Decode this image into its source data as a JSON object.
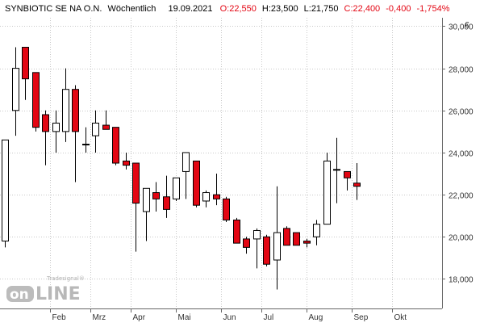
{
  "chart_data": {
    "type": "candlestick",
    "header": {
      "instrument": "SYNBIOTIC SE  NA O.N.",
      "period": "Wöchentlich",
      "date": "19.09.2021",
      "open": "O:22,550",
      "high": "H:23,500",
      "low": "L:21,750",
      "close": "C:22,400",
      "change": "-0,400",
      "change_pct": "-1,754%"
    },
    "currency_label": "€",
    "y_ticks": [
      18000,
      20000,
      22000,
      24000,
      26000,
      28000,
      30000
    ],
    "y_tick_labels": [
      "18,000",
      "20,000",
      "22,000",
      "24,000",
      "26,000",
      "28,000",
      "30,000"
    ],
    "ylim": [
      16600,
      30400
    ],
    "x_month_labels": [
      "Feb",
      "Mrz",
      "Apr",
      "Mai",
      "Jun",
      "Jul",
      "Aug",
      "Sep",
      "Okt"
    ],
    "x_month_positions": [
      5.0,
      9.0,
      13.0,
      17.5,
      22.0,
      26.0,
      30.5,
      35.0,
      39.0
    ],
    "x_total_slots": 44,
    "grid": true,
    "colors": {
      "up": "#ffffff",
      "down": "#e30613",
      "outline": "#000000",
      "header_red": "#e30613",
      "grid": "#c8c8c8"
    },
    "candles": [
      {
        "o": 19800,
        "h": 24600,
        "l": 19500,
        "c": 24600
      },
      {
        "o": 26000,
        "h": 29000,
        "l": 24800,
        "c": 28000
      },
      {
        "o": 29000,
        "h": 29000,
        "l": 26500,
        "c": 27500
      },
      {
        "o": 27800,
        "h": 27800,
        "l": 25000,
        "c": 25200
      },
      {
        "o": 25800,
        "h": 26000,
        "l": 23400,
        "c": 25000
      },
      {
        "o": 25000,
        "h": 26000,
        "l": 24000,
        "c": 25400
      },
      {
        "o": 25000,
        "h": 28000,
        "l": 24500,
        "c": 27000
      },
      {
        "o": 27000,
        "h": 27200,
        "l": 22600,
        "c": 25000
      },
      {
        "o": 24400,
        "h": 25200,
        "l": 24000,
        "c": 24400
      },
      {
        "o": 24800,
        "h": 26000,
        "l": 24000,
        "c": 25400
      },
      {
        "o": 25300,
        "h": 26000,
        "l": 25100,
        "c": 25100
      },
      {
        "o": 25200,
        "h": 25200,
        "l": 23400,
        "c": 23500
      },
      {
        "o": 23600,
        "h": 24000,
        "l": 23200,
        "c": 23400
      },
      {
        "o": 23500,
        "h": 23500,
        "l": 19300,
        "c": 21600
      },
      {
        "o": 21200,
        "h": 22300,
        "l": 19800,
        "c": 22300
      },
      {
        "o": 22100,
        "h": 22600,
        "l": 21200,
        "c": 21800
      },
      {
        "o": 21900,
        "h": 22900,
        "l": 20900,
        "c": 21300
      },
      {
        "o": 21800,
        "h": 22800,
        "l": 21700,
        "c": 22800
      },
      {
        "o": 23100,
        "h": 23900,
        "l": 21800,
        "c": 24000
      },
      {
        "o": 23600,
        "h": 23600,
        "l": 21400,
        "c": 21500
      },
      {
        "o": 21700,
        "h": 22200,
        "l": 21400,
        "c": 22100
      },
      {
        "o": 22000,
        "h": 23000,
        "l": 21500,
        "c": 21800
      },
      {
        "o": 21800,
        "h": 21900,
        "l": 20700,
        "c": 20800
      },
      {
        "o": 20800,
        "h": 20900,
        "l": 19700,
        "c": 19700
      },
      {
        "o": 19900,
        "h": 20000,
        "l": 19200,
        "c": 19500
      },
      {
        "o": 19900,
        "h": 20400,
        "l": 18500,
        "c": 20300
      },
      {
        "o": 20000,
        "h": 20100,
        "l": 18600,
        "c": 18700
      },
      {
        "o": 18900,
        "h": 22400,
        "l": 17500,
        "c": 20200
      },
      {
        "o": 20400,
        "h": 20500,
        "l": 19700,
        "c": 19600
      },
      {
        "o": 20200,
        "h": 20200,
        "l": 19600,
        "c": 19600
      },
      {
        "o": 19800,
        "h": 19900,
        "l": 19500,
        "c": 19700
      },
      {
        "o": 20000,
        "h": 20800,
        "l": 19600,
        "c": 20600
      },
      {
        "o": 20600,
        "h": 24000,
        "l": 20600,
        "c": 23600
      },
      {
        "o": 23200,
        "h": 24700,
        "l": 21600,
        "c": 23200
      },
      {
        "o": 23100,
        "h": 23100,
        "l": 22200,
        "c": 22800
      },
      {
        "o": 22550,
        "h": 23500,
        "l": 21750,
        "c": 22400
      }
    ],
    "watermark": {
      "brand_top": "Tradesignal®",
      "brand_main_1": "on",
      "brand_main_2": "LINE"
    }
  }
}
